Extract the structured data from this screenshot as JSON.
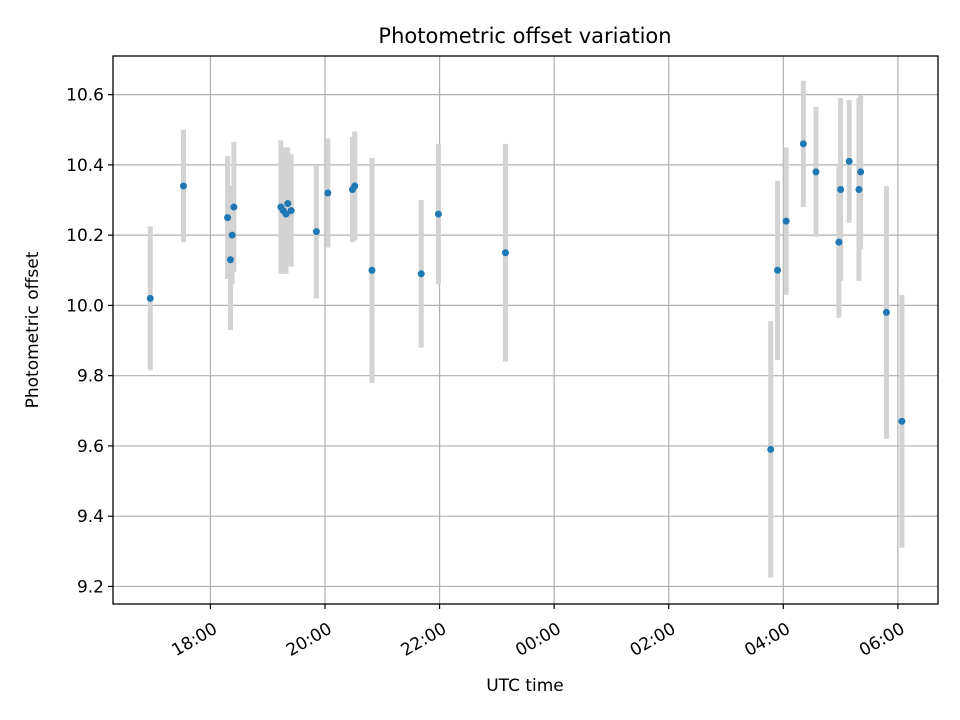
{
  "chart_data": {
    "type": "scatter",
    "title": "Photometric offset variation",
    "xlabel": "UTC time",
    "ylabel": "Photometric offset",
    "x_unit": "UTC time (hours, continuing past midnight)",
    "xlim": [
      16.3,
      30.7
    ],
    "ylim": [
      9.15,
      10.71
    ],
    "grid": true,
    "x_ticks": [
      {
        "value": 18,
        "label": "18:00"
      },
      {
        "value": 20,
        "label": "20:00"
      },
      {
        "value": 22,
        "label": "22:00"
      },
      {
        "value": 24,
        "label": "00:00"
      },
      {
        "value": 26,
        "label": "02:00"
      },
      {
        "value": 28,
        "label": "04:00"
      },
      {
        "value": 30,
        "label": "06:00"
      }
    ],
    "y_ticks": [
      {
        "value": 9.2,
        "label": "9.2"
      },
      {
        "value": 9.4,
        "label": "9.4"
      },
      {
        "value": 9.6,
        "label": "9.6"
      },
      {
        "value": 9.8,
        "label": "9.8"
      },
      {
        "value": 10.0,
        "label": "10.0"
      },
      {
        "value": 10.2,
        "label": "10.2"
      },
      {
        "value": 10.4,
        "label": "10.4"
      },
      {
        "value": 10.6,
        "label": "10.6"
      }
    ],
    "marker_color": "#1f77b4",
    "errorbar_color": "#d3d3d3",
    "points": [
      {
        "x": 16.95,
        "y": 10.02,
        "yerr": 0.205
      },
      {
        "x": 17.53,
        "y": 10.34,
        "yerr": 0.16
      },
      {
        "x": 18.3,
        "y": 10.25,
        "yerr": 0.175
      },
      {
        "x": 18.35,
        "y": 10.13,
        "yerr": 0.2
      },
      {
        "x": 18.38,
        "y": 10.2,
        "yerr": 0.14
      },
      {
        "x": 18.41,
        "y": 10.28,
        "yerr": 0.185
      },
      {
        "x": 19.23,
        "y": 10.28,
        "yerr": 0.19
      },
      {
        "x": 19.27,
        "y": 10.27,
        "yerr": 0.18
      },
      {
        "x": 19.32,
        "y": 10.26,
        "yerr": 0.17
      },
      {
        "x": 19.35,
        "y": 10.29,
        "yerr": 0.16
      },
      {
        "x": 19.41,
        "y": 10.27,
        "yerr": 0.16
      },
      {
        "x": 19.85,
        "y": 10.21,
        "yerr": 0.19
      },
      {
        "x": 20.05,
        "y": 10.32,
        "yerr": 0.155
      },
      {
        "x": 20.48,
        "y": 10.33,
        "yerr": 0.15
      },
      {
        "x": 20.52,
        "y": 10.34,
        "yerr": 0.155
      },
      {
        "x": 20.82,
        "y": 10.1,
        "yerr": 0.32
      },
      {
        "x": 21.68,
        "y": 10.09,
        "yerr": 0.21
      },
      {
        "x": 21.98,
        "y": 10.26,
        "yerr": 0.2
      },
      {
        "x": 23.15,
        "y": 10.15,
        "yerr": 0.31
      },
      {
        "x": 27.78,
        "y": 9.59,
        "yerr": 0.365
      },
      {
        "x": 27.9,
        "y": 10.1,
        "yerr": 0.255
      },
      {
        "x": 28.05,
        "y": 10.24,
        "yerr": 0.21
      },
      {
        "x": 28.35,
        "y": 10.46,
        "yerr": 0.18
      },
      {
        "x": 28.57,
        "y": 10.38,
        "yerr": 0.185
      },
      {
        "x": 28.97,
        "y": 10.18,
        "yerr": 0.215
      },
      {
        "x": 29.0,
        "y": 10.33,
        "yerr": 0.26
      },
      {
        "x": 29.15,
        "y": 10.41,
        "yerr": 0.175
      },
      {
        "x": 29.32,
        "y": 10.33,
        "yerr": 0.26
      },
      {
        "x": 29.35,
        "y": 10.38,
        "yerr": 0.22
      },
      {
        "x": 29.8,
        "y": 9.98,
        "yerr": 0.36
      },
      {
        "x": 30.07,
        "y": 9.67,
        "yerr": 0.36
      }
    ]
  }
}
